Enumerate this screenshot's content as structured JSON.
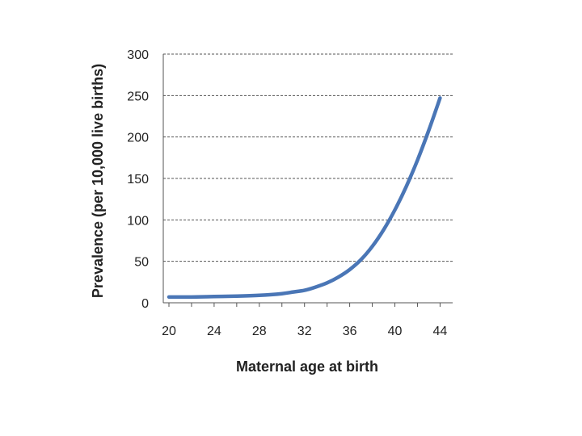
{
  "chart_data": {
    "type": "line",
    "title": "",
    "xlabel": "Maternal age at birth",
    "ylabel": "Prevalence (per  10,000 live births)",
    "xlim": [
      20,
      44
    ],
    "ylim": [
      0,
      300
    ],
    "x_ticks": [
      "20",
      "24",
      "28",
      "32",
      "36",
      "40",
      "44"
    ],
    "y_ticks": [
      "0",
      "50",
      "100",
      "150",
      "200",
      "250",
      "300"
    ],
    "grid": "horizontal dashed",
    "legend": "none",
    "series": [
      {
        "color": "#4a76b6",
        "x": [
          20,
          22,
          24,
          26,
          28,
          30,
          31,
          32,
          33,
          34,
          35,
          36,
          37,
          38,
          39,
          40,
          41,
          42,
          43,
          44
        ],
        "y": [
          7,
          7,
          7.5,
          8,
          9,
          11,
          13,
          15,
          19,
          24,
          31,
          40,
          52,
          68,
          88,
          112,
          140,
          172,
          208,
          247
        ]
      }
    ]
  }
}
